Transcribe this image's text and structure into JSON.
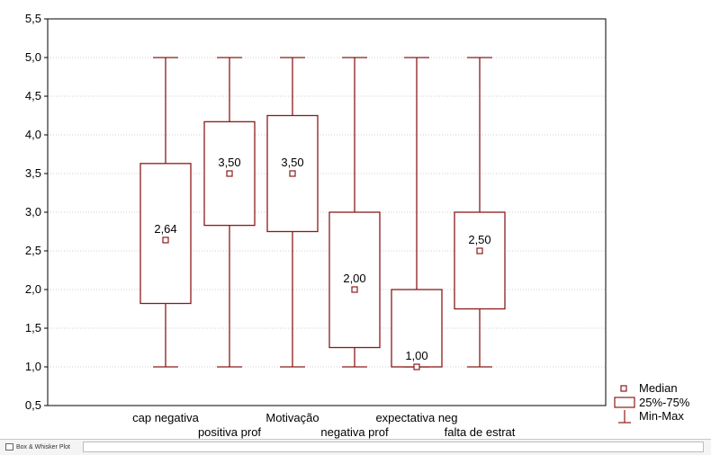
{
  "chart_data": {
    "type": "boxplot",
    "ylim": [
      0.5,
      5.5
    ],
    "yticks": [
      "0,5",
      "1,0",
      "1,5",
      "2,0",
      "2,5",
      "3,0",
      "3,5",
      "4,0",
      "4,5",
      "5,0",
      "5,5"
    ],
    "ytick_values": [
      0.5,
      1.0,
      1.5,
      2.0,
      2.5,
      3.0,
      3.5,
      4.0,
      4.5,
      5.0,
      5.5
    ],
    "grid": true,
    "color": "#8b1a1a",
    "boxes": [
      {
        "category": "cap negativa",
        "min": 1.0,
        "q1": 1.82,
        "median": 2.64,
        "q3": 3.63,
        "max": 5.0,
        "median_label": "2,64"
      },
      {
        "category": "positiva prof",
        "min": 1.0,
        "q1": 2.83,
        "median": 3.5,
        "q3": 4.17,
        "max": 5.0,
        "median_label": "3,50"
      },
      {
        "category": "Motivação",
        "min": 1.0,
        "q1": 2.75,
        "median": 3.5,
        "q3": 4.25,
        "max": 5.0,
        "median_label": "3,50"
      },
      {
        "category": "negativa prof",
        "min": 1.0,
        "q1": 1.25,
        "median": 2.0,
        "q3": 3.0,
        "max": 5.0,
        "median_label": "2,00"
      },
      {
        "category": "expectativa neg",
        "min": 1.0,
        "q1": 1.0,
        "median": 1.0,
        "q3": 2.0,
        "max": 5.0,
        "median_label": "1,00"
      },
      {
        "category": "falta de estrat",
        "min": 1.0,
        "q1": 1.75,
        "median": 2.5,
        "q3": 3.0,
        "max": 5.0,
        "median_label": "2,50"
      }
    ],
    "legend": {
      "position": "bottom-right",
      "items": [
        "Median",
        "25%-75%",
        "Min-Max"
      ]
    }
  },
  "footer": {
    "tab_label": "Box & Whisker Plot"
  }
}
